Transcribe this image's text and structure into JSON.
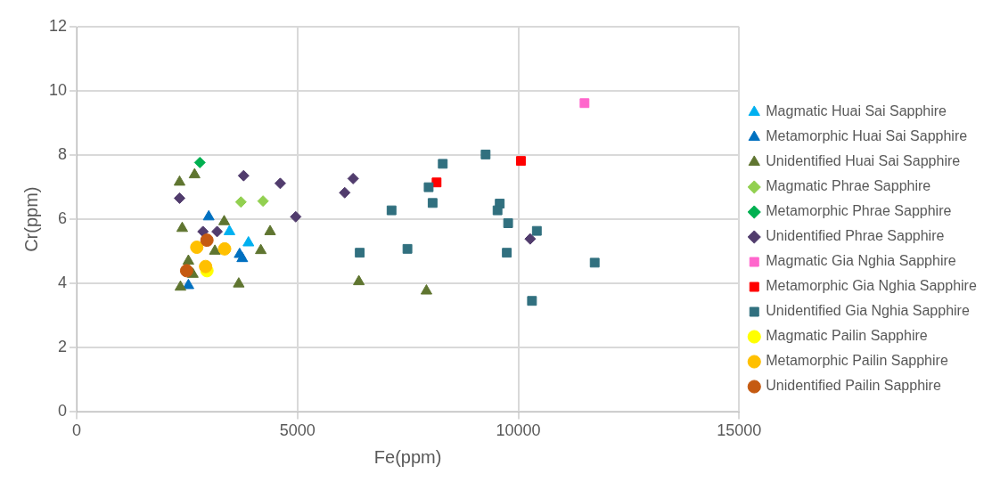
{
  "chart_data": {
    "type": "scatter",
    "xlabel": "Fe(ppm)",
    "ylabel": "Cr(ppm)",
    "xlim": [
      0,
      15000
    ],
    "xticks": [
      0,
      5000,
      10000,
      15000
    ],
    "ylim": [
      0,
      12
    ],
    "yticks": [
      0,
      2,
      4,
      6,
      8,
      10,
      12
    ],
    "grid": true,
    "legend": "right",
    "series": [
      {
        "name": "Magmatic Huai Sai Sapphire",
        "color": "#00b0f0",
        "marker": "triangle",
        "x": [
          3460,
          3890
        ],
        "values": [
          5.62,
          5.27
        ]
      },
      {
        "name": "Metamorphic Huai Sai Sapphire",
        "color": "#0070c0",
        "marker": "triangle",
        "x": [
          2990,
          3690,
          3750,
          2530
        ],
        "values": [
          6.08,
          4.91,
          4.78,
          3.94
        ]
      },
      {
        "name": "Unidentified Huai Sai Sapphire",
        "color": "#5f7530",
        "marker": "triangle",
        "x": [
          2330,
          2670,
          2390,
          3340,
          4380,
          4170,
          2530,
          3130,
          2630,
          2350,
          3670,
          6390,
          7920
        ],
        "values": [
          7.16,
          7.39,
          5.72,
          5.93,
          5.62,
          5.03,
          4.7,
          5.01,
          4.29,
          3.89,
          3.99,
          4.06,
          3.77
        ]
      },
      {
        "name": "Magmatic Phrae Sapphire",
        "color": "#92d050",
        "marker": "diamond",
        "x": [
          3720,
          4220
        ],
        "values": [
          6.54,
          6.57
        ]
      },
      {
        "name": "Metamorphic Phrae Sapphire",
        "color": "#00b050",
        "marker": "diamond",
        "x": [
          2790
        ],
        "values": [
          7.77
        ]
      },
      {
        "name": "Unidentified Phrae Sapphire",
        "color": "#513c6d",
        "marker": "diamond",
        "x": [
          2330,
          3780,
          4610,
          6260,
          6070,
          4960,
          2860,
          3180,
          10270
        ],
        "values": [
          6.66,
          7.36,
          7.12,
          7.27,
          6.83,
          6.08,
          5.62,
          5.62,
          5.39
        ]
      },
      {
        "name": "Magmatic Gia Nghia Sapphire",
        "color": "#ff66cc",
        "marker": "square",
        "x": [
          11500
        ],
        "values": [
          9.62
        ]
      },
      {
        "name": "Metamorphic Gia Nghia Sapphire",
        "color": "#ff0000",
        "marker": "square",
        "x": [
          10060,
          8150
        ],
        "values": [
          7.82,
          7.15
        ]
      },
      {
        "name": "Unidentified Gia Nghia Sapphire",
        "color": "#31707f",
        "marker": "square",
        "x": [
          7130,
          7490,
          8290,
          7970,
          8060,
          9260,
          9580,
          9530,
          9770,
          10420,
          9740,
          11730,
          10310,
          6410
        ],
        "values": [
          6.28,
          5.08,
          7.73,
          7.0,
          6.51,
          8.02,
          6.49,
          6.28,
          5.88,
          5.64,
          4.96,
          4.65,
          3.46,
          4.96
        ]
      },
      {
        "name": "Magmatic Pailin Sapphire",
        "color": "#ffff00",
        "marker": "circle",
        "x": [
          2950
        ],
        "values": [
          4.4
        ]
      },
      {
        "name": "Metamorphic Pailin Sapphire",
        "color": "#ffc000",
        "marker": "circle",
        "x": [
          2720,
          3350,
          2920
        ],
        "values": [
          5.13,
          5.08,
          4.53
        ]
      },
      {
        "name": "Unidentified Pailin Sapphire",
        "color": "#c55a11",
        "marker": "circle",
        "x": [
          2950,
          2490
        ],
        "values": [
          5.35,
          4.4
        ]
      }
    ]
  }
}
